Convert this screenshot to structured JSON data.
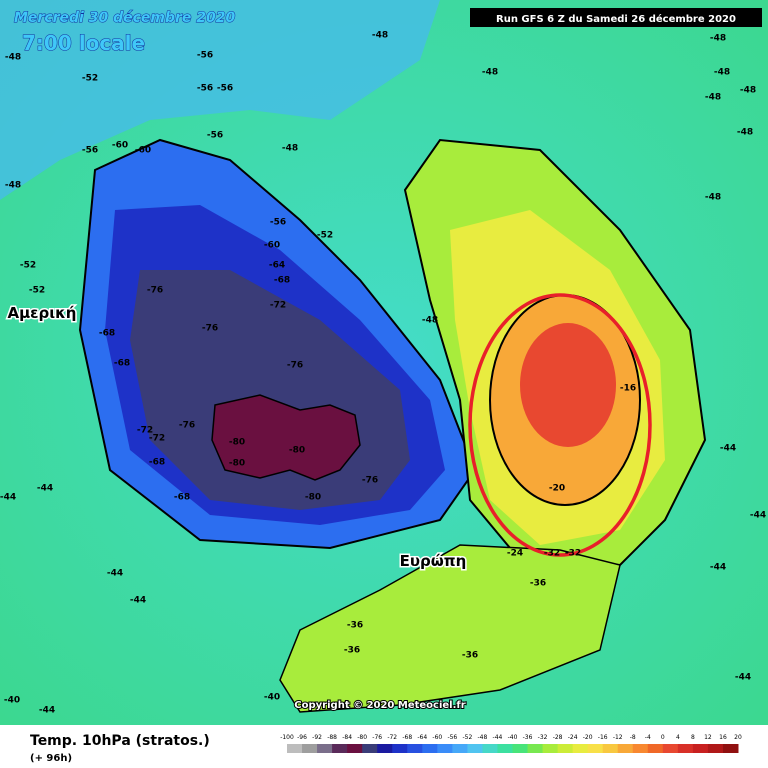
{
  "header": {
    "date": "Mercredi 30 décembre 2020",
    "time": "7:00 locale",
    "run": "Run GFS 6 Z du Samedi 26 décembre 2020"
  },
  "regions": {
    "america": "Αμερική",
    "europe": "Ευρώπη"
  },
  "copyright": "Copyright © 2020 Meteociel.fr",
  "footer": {
    "title": "Temp. 10hPa (stratos.)",
    "lead": "(+ 96h)"
  },
  "contour_labels": [
    -48,
    -52,
    -56,
    -60,
    -60,
    -56,
    -56,
    -56,
    -56,
    -48,
    -48,
    -52,
    -56,
    -60,
    -64,
    -68,
    -72,
    -76,
    -76,
    -76,
    -68,
    -68,
    -72,
    -72,
    -76,
    -80,
    -80,
    -80,
    -80,
    -76,
    -68,
    -68,
    -48,
    -16,
    -20,
    -44,
    -44,
    -44,
    -44,
    -44,
    -44,
    -40,
    -36,
    -36,
    -36,
    -32,
    -32,
    -24,
    -36,
    -52,
    -52,
    -48,
    -48,
    -48,
    -48,
    -48,
    -48,
    -48,
    -48,
    -44,
    -44,
    -44,
    -40
  ],
  "colorbar": {
    "ticks": [
      -100,
      -96,
      -92,
      -88,
      -84,
      -80,
      -76,
      -72,
      -68,
      -64,
      -60,
      -56,
      -52,
      -48,
      -44,
      -40,
      -36,
      -32,
      -28,
      -24,
      -20,
      -16,
      -12,
      -8,
      -4,
      0,
      4,
      8,
      12,
      16,
      20
    ],
    "colors": [
      "#bdbdbd",
      "#9e9e9e",
      "#7a6e8a",
      "#5a2a5a",
      "#6a1040",
      "#3a3c78",
      "#1a1aa0",
      "#1e32c8",
      "#2850e0",
      "#2c6ef0",
      "#3a8cf8",
      "#46a8f8",
      "#50c4f0",
      "#46d8c8",
      "#3ce0a0",
      "#48e47a",
      "#78e850",
      "#a8ec3c",
      "#ccec38",
      "#e8ec40",
      "#f8e048",
      "#f8c840",
      "#f8a838",
      "#f88830",
      "#f06828",
      "#e84830",
      "#d83028",
      "#c82020",
      "#b01818",
      "#901010"
    ]
  }
}
